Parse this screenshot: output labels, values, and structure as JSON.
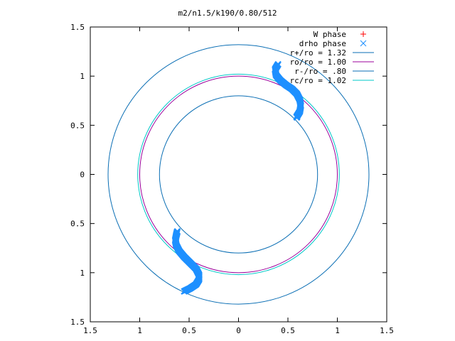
{
  "chart_data": {
    "type": "line",
    "title": "m2/n1.5/k190/0.80/512",
    "xlabel": "",
    "ylabel": "",
    "xlim": [
      -1.5,
      1.5
    ],
    "ylim": [
      -1.5,
      1.5
    ],
    "x_ticks": [
      "1.5",
      "1",
      "0.5",
      "0",
      "0.5",
      "1",
      "1.5"
    ],
    "y_ticks": [
      "1.5",
      "1",
      "0.5",
      "0",
      "0.5",
      "1",
      "1.5"
    ],
    "grid": false,
    "legend_position": "top-right",
    "series": [
      {
        "name": "W phase",
        "kind": "points",
        "marker": "plus",
        "color": "#ff0000",
        "points": []
      },
      {
        "name": "drho phase",
        "kind": "points",
        "marker": "cross",
        "color": "#1e90ff",
        "points": [
          [
            0.4,
            1.12
          ],
          [
            0.37,
            1.07
          ],
          [
            0.38,
            1.01
          ],
          [
            0.42,
            0.96
          ],
          [
            0.48,
            0.91
          ],
          [
            0.54,
            0.87
          ],
          [
            0.59,
            0.82
          ],
          [
            0.62,
            0.76
          ],
          [
            0.63,
            0.7
          ],
          [
            0.62,
            0.64
          ],
          [
            0.59,
            0.59
          ],
          [
            0.59,
            0.58
          ],
          [
            -0.62,
            -0.58
          ],
          [
            -0.63,
            -0.62
          ],
          [
            -0.64,
            -0.67
          ],
          [
            -0.63,
            -0.72
          ],
          [
            -0.6,
            -0.78
          ],
          [
            -0.55,
            -0.84
          ],
          [
            -0.49,
            -0.9
          ],
          [
            -0.43,
            -0.96
          ],
          [
            -0.4,
            -1.02
          ],
          [
            -0.4,
            -1.07
          ],
          [
            -0.43,
            -1.12
          ],
          [
            -0.49,
            -1.16
          ],
          [
            -0.55,
            -1.19
          ]
        ]
      },
      {
        "name": "r+/ro = 1.32",
        "kind": "circle",
        "r": 1.32,
        "color": "#0a6eb4"
      },
      {
        "name": "ro/ro = 1.00",
        "kind": "circle",
        "r": 1.0,
        "color": "#9b009b"
      },
      {
        "name": "r-/ro = .80",
        "kind": "circle",
        "r": 0.8,
        "color": "#0a6eb4"
      },
      {
        "name": "rc/ro = 1.02",
        "kind": "circle",
        "r": 1.02,
        "color": "#00c8c8"
      }
    ]
  }
}
